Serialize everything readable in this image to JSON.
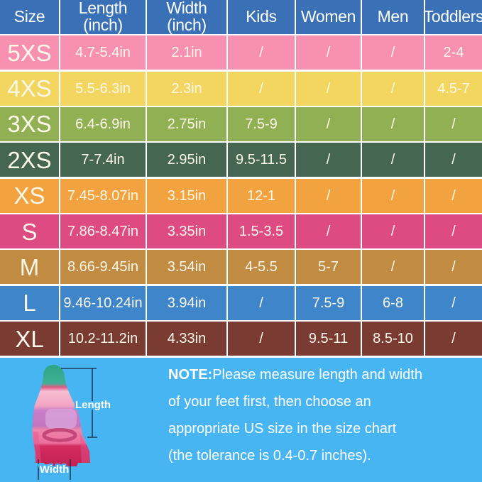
{
  "table": {
    "grid_line_color": "#ffffff",
    "header_bg": "#3a70b5",
    "header_text_color": "#ffffff",
    "row_text_color": "#fbf7e9",
    "columns": [
      "size",
      "length",
      "width",
      "kids",
      "women",
      "men",
      "toddlers"
    ],
    "headers": [
      {
        "line1": "Size",
        "line2": ""
      },
      {
        "line1": "Length",
        "line2": "(inch)"
      },
      {
        "line1": "Width",
        "line2": "(inch)"
      },
      {
        "line1": "Kids",
        "line2": ""
      },
      {
        "line1": "Women",
        "line2": ""
      },
      {
        "line1": "Men",
        "line2": ""
      },
      {
        "line1": "Toddlers",
        "line2": ""
      }
    ],
    "rows": [
      {
        "color": "#f891b1",
        "size": "5XS",
        "length": "4.7-5.4in",
        "width": "2.1in",
        "kids": "/",
        "women": "/",
        "men": "/",
        "toddlers": "2-4"
      },
      {
        "color": "#f2d65f",
        "size": "4XS",
        "length": "5.5-6.3in",
        "width": "2.3in",
        "kids": "/",
        "women": "/",
        "men": "/",
        "toddlers": "4.5-7"
      },
      {
        "color": "#91b053",
        "size": "3XS",
        "length": "6.4-6.9in",
        "width": "2.75in",
        "kids": "7.5-9",
        "women": "/",
        "men": "/",
        "toddlers": "/"
      },
      {
        "color": "#456650",
        "size": "2XS",
        "length": "7-7.4in",
        "width": "2.95in",
        "kids": "9.5-11.5",
        "women": "/",
        "men": "/",
        "toddlers": "/"
      },
      {
        "color": "#f2a33f",
        "size": "XS",
        "length": "7.45-8.07in",
        "width": "3.15in",
        "kids": "12-1",
        "women": "/",
        "men": "/",
        "toddlers": "/"
      },
      {
        "color": "#de4b83",
        "size": "S",
        "length": "7.86-8.47in",
        "width": "3.35in",
        "kids": "1.5-3.5",
        "women": "/",
        "men": "/",
        "toddlers": "/"
      },
      {
        "color": "#c18b41",
        "size": "M",
        "length": "8.66-9.45in",
        "width": "3.54in",
        "kids": "4-5.5",
        "women": "5-7",
        "men": "/",
        "toddlers": "/"
      },
      {
        "color": "#3e85c9",
        "size": "L",
        "length": "9.46-10.24in",
        "width": "3.94in",
        "kids": "/",
        "women": "7.5-9",
        "men": "6-8",
        "toddlers": "/"
      },
      {
        "color": "#793b32",
        "size": "XL",
        "length": "10.2-11.2in",
        "width": "4.33in",
        "kids": "/",
        "women": "9.5-11",
        "men": "8.5-10",
        "toddlers": "/"
      }
    ]
  },
  "footer": {
    "bg": "#47b5f2",
    "note_label": "NOTE:",
    "note_lines": [
      "Please measure length and width",
      "of your feet first, then choose an",
      "appropriate US size in the size chart",
      "(the tolerance is 0.4-0.7 inches)."
    ],
    "diagram": {
      "length_label": "Length",
      "width_label": "Width",
      "dimension_line_color": "#1b2438",
      "fin_gradient": [
        "#2ea487",
        "#3fb095",
        "#e05c84",
        "#f7bcd0",
        "#f3a6c2",
        "#c87fc8",
        "#c175bf",
        "#ef85ab",
        "#ec6f9d",
        "#d32b5f",
        "#c32255"
      ]
    }
  }
}
